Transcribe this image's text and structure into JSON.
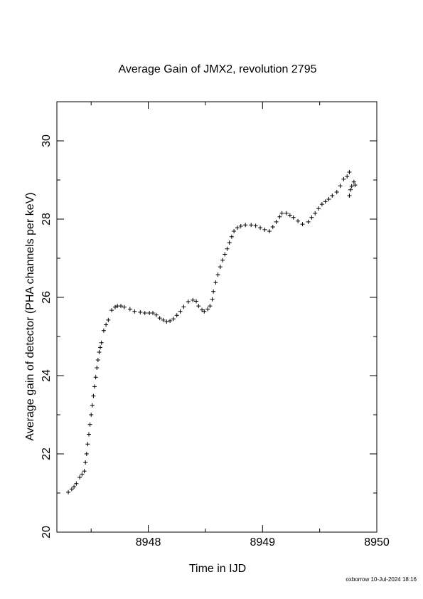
{
  "chart_data": {
    "type": "scatter",
    "title": "Average Gain of JMX2, revolution 2795",
    "x_label": "Time in IJD",
    "y_label": "Average gain of detector (PHA channels per keV)",
    "footer": "oxborrow 10-Jul-2024 18:16",
    "marker": "+",
    "color": "#000000",
    "xlim": [
      8947.2,
      8950
    ],
    "ylim": [
      20,
      31
    ],
    "xticks": [
      8948,
      8949,
      8950
    ],
    "yticks": [
      20,
      22,
      24,
      26,
      28,
      30
    ],
    "xminor": [
      8947.5,
      8948.5,
      8949.5
    ],
    "yminor": [
      21,
      23,
      25,
      27,
      29
    ],
    "x": [
      8947.3,
      8947.33,
      8947.35,
      8947.37,
      8947.4,
      8947.42,
      8947.44,
      8947.45,
      8947.46,
      8947.47,
      8947.48,
      8947.49,
      8947.5,
      8947.51,
      8947.52,
      8947.53,
      8947.54,
      8947.55,
      8947.56,
      8947.57,
      8947.58,
      8947.59,
      8947.61,
      8947.63,
      8947.65,
      8947.68,
      8947.71,
      8947.73,
      8947.76,
      8947.79,
      8947.84,
      8947.88,
      8947.93,
      8947.97,
      8948.01,
      8948.04,
      8948.07,
      8948.1,
      8948.13,
      8948.16,
      8948.19,
      8948.22,
      8948.25,
      8948.28,
      8948.31,
      8948.35,
      8948.39,
      8948.42,
      8948.44,
      8948.47,
      8948.49,
      8948.52,
      8948.54,
      8948.56,
      8948.57,
      8948.59,
      8948.61,
      8948.63,
      8948.65,
      8948.67,
      8948.69,
      8948.71,
      8948.73,
      8948.75,
      8948.78,
      8948.81,
      8948.85,
      8948.9,
      8948.94,
      8948.98,
      8949.02,
      8949.06,
      8949.09,
      8949.12,
      8949.15,
      8949.17,
      8949.21,
      8949.24,
      8949.27,
      8949.31,
      8949.35,
      8949.4,
      8949.43,
      8949.46,
      8949.49,
      8949.52,
      8949.55,
      8949.58,
      8949.61,
      8949.65,
      8949.68,
      8949.71,
      8949.74,
      8949.76,
      8949.76,
      8949.77,
      8949.78,
      8949.8,
      8949.81
    ],
    "values": [
      21.02,
      21.1,
      21.16,
      21.24,
      21.4,
      21.48,
      21.56,
      21.78,
      22.0,
      22.25,
      22.5,
      22.75,
      23.0,
      23.24,
      23.48,
      23.72,
      23.96,
      24.2,
      24.4,
      24.6,
      24.72,
      24.84,
      25.15,
      25.3,
      25.42,
      25.67,
      25.75,
      25.78,
      25.78,
      25.75,
      25.7,
      25.64,
      25.62,
      25.6,
      25.6,
      25.6,
      25.55,
      25.47,
      25.42,
      25.38,
      25.4,
      25.45,
      25.54,
      25.64,
      25.76,
      25.89,
      25.93,
      25.9,
      25.78,
      25.68,
      25.64,
      25.7,
      25.78,
      25.95,
      26.15,
      26.38,
      26.58,
      26.78,
      26.95,
      27.1,
      27.24,
      27.4,
      27.55,
      27.69,
      27.78,
      27.82,
      27.85,
      27.85,
      27.83,
      27.78,
      27.73,
      27.69,
      27.8,
      27.93,
      28.06,
      28.15,
      28.15,
      28.1,
      28.04,
      27.95,
      27.87,
      27.93,
      28.04,
      28.15,
      28.27,
      28.38,
      28.45,
      28.51,
      28.6,
      28.69,
      28.85,
      29.02,
      29.09,
      29.2,
      28.6,
      28.75,
      28.84,
      28.95,
      28.87
    ]
  }
}
